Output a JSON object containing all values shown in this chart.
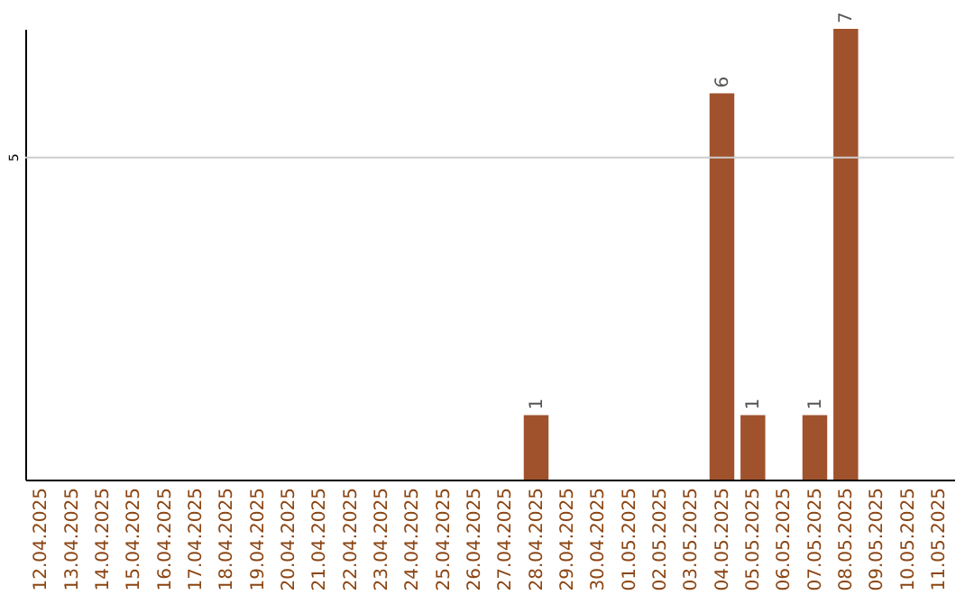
{
  "chart_data": {
    "type": "bar",
    "categories": [
      "12.04.2025",
      "13.04.2025",
      "14.04.2025",
      "15.04.2025",
      "16.04.2025",
      "17.04.2025",
      "18.04.2025",
      "19.04.2025",
      "20.04.2025",
      "21.04.2025",
      "22.04.2025",
      "23.04.2025",
      "24.04.2025",
      "25.04.2025",
      "26.04.2025",
      "27.04.2025",
      "28.04.2025",
      "29.04.2025",
      "30.04.2025",
      "01.05.2025",
      "02.05.2025",
      "03.05.2025",
      "04.05.2025",
      "05.05.2025",
      "06.05.2025",
      "07.05.2025",
      "08.05.2025",
      "09.05.2025",
      "10.05.2025",
      "11.05.2025"
    ],
    "values": [
      null,
      null,
      null,
      null,
      null,
      null,
      null,
      null,
      null,
      null,
      null,
      null,
      null,
      null,
      null,
      null,
      1,
      null,
      null,
      null,
      null,
      null,
      6,
      1,
      null,
      1,
      7,
      null,
      null,
      null
    ],
    "data_labels": true,
    "color": "#a0522d",
    "ref_lines": [
      {
        "axis": "y",
        "value": 5,
        "label": "5",
        "color": "#cccccc"
      }
    ]
  }
}
